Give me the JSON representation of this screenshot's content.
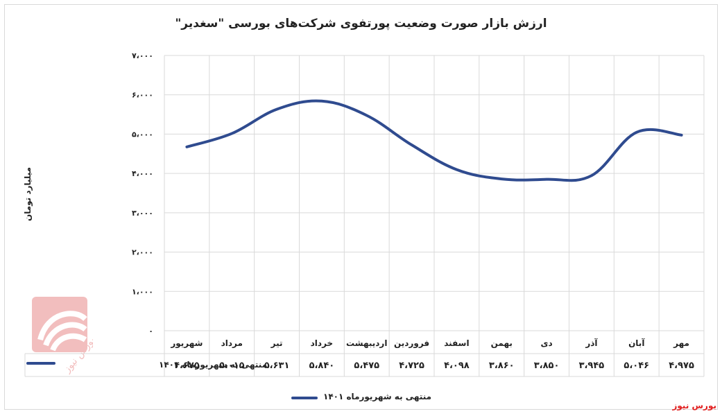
{
  "chart_data": {
    "type": "line",
    "title": "ارزش بازار صورت وضعیت پورتفوی شرکت‌های بورسی \"سغدیر\"",
    "ylabel": "میلیارد تومان",
    "xlabel": "",
    "categories": [
      "مهر",
      "آبان",
      "آذر",
      "دی",
      "بهمن",
      "اسفند",
      "فروردین",
      "اردیبهشت",
      "خرداد",
      "تیر",
      "مرداد",
      "شهریور"
    ],
    "series": [
      {
        "name": "منتهی به شهریورماه ۱۴۰۱",
        "values": [
          4975,
          5046,
          3945,
          3850,
          3860,
          4098,
          4725,
          5475,
          5840,
          5631,
          5015,
          4675
        ],
        "value_labels": [
          "۴،۹۷۵",
          "۵،۰۴۶",
          "۳،۹۴۵",
          "۳،۸۵۰",
          "۳،۸۶۰",
          "۴،۰۹۸",
          "۴،۷۲۵",
          "۵،۴۷۵",
          "۵،۸۴۰",
          "۵،۶۳۱",
          "۵،۰۱۵",
          "۴،۶۷۵"
        ],
        "color": "#2f4b8f"
      }
    ],
    "ylim": [
      0,
      7000
    ],
    "yticks": [
      0,
      1000,
      2000,
      3000,
      4000,
      5000,
      6000,
      7000
    ],
    "ytick_labels": [
      "۰",
      "۱،۰۰۰",
      "۲،۰۰۰",
      "۳،۰۰۰",
      "۴،۰۰۰",
      "۵،۰۰۰",
      "۶،۰۰۰",
      "۷،۰۰۰"
    ],
    "grid": true,
    "legend_position": "bottom",
    "data_table": true
  },
  "legend": {
    "label": "منتهی به شهریورماه ۱۴۰۱"
  },
  "brand": "بورس نیوز",
  "watermark_text": "بورس نیوز"
}
